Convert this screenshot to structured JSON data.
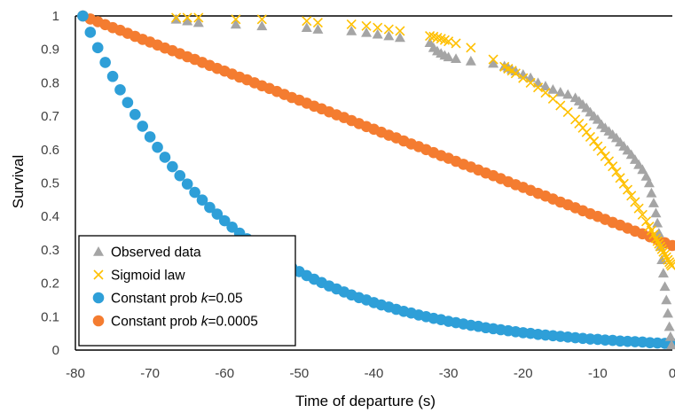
{
  "chart_data": {
    "type": "scatter",
    "xlabel": "Time of departure (s)",
    "ylabel": "Survival",
    "xlim": [
      -80,
      0
    ],
    "ylim": [
      0,
      1
    ],
    "x_ticks": [
      "-80",
      "-70",
      "-60",
      "-50",
      "-40",
      "-30",
      "-20",
      "-10",
      "0"
    ],
    "y_ticks": [
      "0",
      "0.1",
      "0.2",
      "0.3",
      "0.4",
      "0.5",
      "0.6",
      "0.7",
      "0.8",
      "0.9",
      "1"
    ],
    "grid": false,
    "legend_position": "bottom-left",
    "series": [
      {
        "name": "Observed data",
        "marker": "triangle",
        "color": "#a5a5a5",
        "points": [
          [
            -66.5,
            0.99
          ],
          [
            -65,
            0.985
          ],
          [
            -63.5,
            0.98
          ],
          [
            -58.5,
            0.975
          ],
          [
            -55,
            0.97
          ],
          [
            -49,
            0.965
          ],
          [
            -47.5,
            0.96
          ],
          [
            -43,
            0.955
          ],
          [
            -41,
            0.95
          ],
          [
            -39.5,
            0.945
          ],
          [
            -38,
            0.94
          ],
          [
            -36.5,
            0.935
          ],
          [
            -32.5,
            0.92
          ],
          [
            -32,
            0.905
          ],
          [
            -31.5,
            0.895
          ],
          [
            -31,
            0.888
          ],
          [
            -30.5,
            0.882
          ],
          [
            -30,
            0.877
          ],
          [
            -29,
            0.872
          ],
          [
            -27,
            0.865
          ],
          [
            -24,
            0.858
          ],
          [
            -22.5,
            0.85
          ],
          [
            -22,
            0.845
          ],
          [
            -21.5,
            0.84
          ],
          [
            -21,
            0.835
          ],
          [
            -20,
            0.825
          ],
          [
            -19,
            0.815
          ],
          [
            -18,
            0.8
          ],
          [
            -17,
            0.79
          ],
          [
            -16,
            0.78
          ],
          [
            -15,
            0.772
          ],
          [
            -14,
            0.765
          ],
          [
            -13,
            0.755
          ],
          [
            -12.5,
            0.745
          ],
          [
            -12,
            0.735
          ],
          [
            -11.5,
            0.725
          ],
          [
            -11,
            0.712
          ],
          [
            -10.5,
            0.7
          ],
          [
            -10,
            0.69
          ],
          [
            -9.5,
            0.675
          ],
          [
            -9,
            0.665
          ],
          [
            -8.5,
            0.655
          ],
          [
            -8,
            0.645
          ],
          [
            -7.5,
            0.635
          ],
          [
            -7,
            0.622
          ],
          [
            -6.5,
            0.61
          ],
          [
            -6,
            0.598
          ],
          [
            -5.5,
            0.585
          ],
          [
            -5,
            0.57
          ],
          [
            -4.5,
            0.555
          ],
          [
            -4,
            0.54
          ],
          [
            -3.5,
            0.52
          ],
          [
            -3.1,
            0.5
          ],
          [
            -2.8,
            0.47
          ],
          [
            -2.5,
            0.44
          ],
          [
            -2.2,
            0.41
          ],
          [
            -2,
            0.38
          ],
          [
            -1.8,
            0.35
          ],
          [
            -1.6,
            0.31
          ],
          [
            -1.4,
            0.27
          ],
          [
            -1.2,
            0.23
          ],
          [
            -1.0,
            0.19
          ],
          [
            -0.8,
            0.15
          ],
          [
            -0.6,
            0.11
          ],
          [
            -0.4,
            0.07
          ],
          [
            -0.25,
            0.04
          ],
          [
            -0.1,
            0.015
          ]
        ]
      },
      {
        "name": "Sigmoid law",
        "marker": "x",
        "color": "#ffc000",
        "points": [
          [
            -66.5,
            0.995
          ],
          [
            -65,
            0.995
          ],
          [
            -63.5,
            0.995
          ],
          [
            -58.5,
            0.99
          ],
          [
            -55,
            0.99
          ],
          [
            -49,
            0.985
          ],
          [
            -47.5,
            0.98
          ],
          [
            -43,
            0.975
          ],
          [
            -41,
            0.97
          ],
          [
            -39.5,
            0.965
          ],
          [
            -38,
            0.96
          ],
          [
            -36.5,
            0.955
          ],
          [
            -32.5,
            0.94
          ],
          [
            -32,
            0.938
          ],
          [
            -31.5,
            0.935
          ],
          [
            -31,
            0.932
          ],
          [
            -30.5,
            0.928
          ],
          [
            -30,
            0.924
          ],
          [
            -29,
            0.918
          ],
          [
            -27,
            0.905
          ],
          [
            -24,
            0.87
          ],
          [
            -22.5,
            0.848
          ],
          [
            -22,
            0.842
          ],
          [
            -21.5,
            0.836
          ],
          [
            -21,
            0.828
          ],
          [
            -20,
            0.814
          ],
          [
            -19,
            0.8
          ],
          [
            -18,
            0.786
          ],
          [
            -17,
            0.77
          ],
          [
            -16,
            0.752
          ],
          [
            -15,
            0.732
          ],
          [
            -14,
            0.712
          ],
          [
            -13,
            0.69
          ],
          [
            -12.5,
            0.678
          ],
          [
            -12,
            0.665
          ],
          [
            -11.5,
            0.652
          ],
          [
            -11,
            0.638
          ],
          [
            -10.5,
            0.625
          ],
          [
            -10,
            0.61
          ],
          [
            -9.5,
            0.596
          ],
          [
            -9,
            0.58
          ],
          [
            -8.5,
            0.565
          ],
          [
            -8,
            0.55
          ],
          [
            -7.5,
            0.533
          ],
          [
            -7,
            0.515
          ],
          [
            -6.5,
            0.498
          ],
          [
            -6,
            0.48
          ],
          [
            -5.5,
            0.462
          ],
          [
            -5,
            0.443
          ],
          [
            -4.5,
            0.424
          ],
          [
            -4,
            0.405
          ],
          [
            -3.5,
            0.385
          ],
          [
            -3.1,
            0.37
          ],
          [
            -2.8,
            0.358
          ],
          [
            -2.5,
            0.346
          ],
          [
            -2.2,
            0.334
          ],
          [
            -2,
            0.326
          ],
          [
            -1.8,
            0.318
          ],
          [
            -1.6,
            0.31
          ],
          [
            -1.4,
            0.302
          ],
          [
            -1.2,
            0.294
          ],
          [
            -1.0,
            0.286
          ],
          [
            -0.8,
            0.278
          ],
          [
            -0.6,
            0.27
          ],
          [
            -0.4,
            0.263
          ],
          [
            -0.25,
            0.257
          ],
          [
            -0.1,
            0.252
          ]
        ]
      },
      {
        "name": "Constant prob k=0.05",
        "name_parts": [
          "Constant prob ",
          "k",
          "=0.05"
        ],
        "marker": "circle",
        "color": "#2e9fd8",
        "function": "exp(-0.05*(t+79))",
        "x": [
          -79,
          -78,
          -77,
          -76,
          -75,
          -74,
          -73,
          -72,
          -71,
          -70,
          -69,
          -68,
          -67,
          -66,
          -65,
          -64,
          -63,
          -62,
          -61,
          -60,
          -59,
          -58,
          -57,
          -56,
          -55,
          -54,
          -53,
          -52,
          -51,
          -50,
          -49,
          -48,
          -47,
          -46,
          -45,
          -44,
          -43,
          -42,
          -41,
          -40,
          -39,
          -38,
          -37,
          -36,
          -35,
          -34,
          -33,
          -32,
          -31,
          -30,
          -29,
          -28,
          -27,
          -26,
          -25,
          -24,
          -23,
          -22,
          -21,
          -20,
          -19,
          -18,
          -17,
          -16,
          -15,
          -14,
          -13,
          -12,
          -11,
          -10,
          -9,
          -8,
          -7,
          -6,
          -5,
          -4,
          -3,
          -2,
          -1,
          0
        ],
        "y": [
          1.0,
          0.951,
          0.905,
          0.861,
          0.819,
          0.779,
          0.741,
          0.705,
          0.67,
          0.638,
          0.607,
          0.577,
          0.549,
          0.522,
          0.497,
          0.472,
          0.449,
          0.427,
          0.407,
          0.387,
          0.368,
          0.35,
          0.333,
          0.317,
          0.301,
          0.287,
          0.273,
          0.259,
          0.247,
          0.235,
          0.223,
          0.212,
          0.202,
          0.192,
          0.183,
          0.174,
          0.165,
          0.157,
          0.15,
          0.142,
          0.135,
          0.129,
          0.122,
          0.116,
          0.111,
          0.105,
          0.1,
          0.095,
          0.091,
          0.086,
          0.082,
          0.078,
          0.074,
          0.071,
          0.067,
          0.064,
          0.061,
          0.058,
          0.055,
          0.052,
          0.05,
          0.047,
          0.045,
          0.043,
          0.041,
          0.039,
          0.037,
          0.035,
          0.033,
          0.032,
          0.03,
          0.029,
          0.027,
          0.026,
          0.025,
          0.024,
          0.022,
          0.021,
          0.02,
          0.019
        ]
      },
      {
        "name": "Constant prob k=0.0005",
        "name_parts": [
          "Constant prob ",
          "k",
          "=0.0005"
        ],
        "marker": "circle",
        "color": "#f47c30",
        "function": "1 - 0.0087*(t+79)",
        "x": [
          -79,
          -78,
          -77,
          -76,
          -75,
          -74,
          -73,
          -72,
          -71,
          -70,
          -69,
          -68,
          -67,
          -66,
          -65,
          -64,
          -63,
          -62,
          -61,
          -60,
          -59,
          -58,
          -57,
          -56,
          -55,
          -54,
          -53,
          -52,
          -51,
          -50,
          -49,
          -48,
          -47,
          -46,
          -45,
          -44,
          -43,
          -42,
          -41,
          -40,
          -39,
          -38,
          -37,
          -36,
          -35,
          -34,
          -33,
          -32,
          -31,
          -30,
          -29,
          -28,
          -27,
          -26,
          -25,
          -24,
          -23,
          -22,
          -21,
          -20,
          -19,
          -18,
          -17,
          -16,
          -15,
          -14,
          -13,
          -12,
          -11,
          -10,
          -9,
          -8,
          -7,
          -6,
          -5,
          -4,
          -3,
          -2,
          -1,
          0
        ],
        "y": [
          1.0,
          0.991,
          0.983,
          0.974,
          0.965,
          0.957,
          0.948,
          0.939,
          0.93,
          0.922,
          0.913,
          0.904,
          0.896,
          0.887,
          0.878,
          0.87,
          0.861,
          0.852,
          0.843,
          0.835,
          0.826,
          0.817,
          0.809,
          0.8,
          0.791,
          0.783,
          0.774,
          0.765,
          0.756,
          0.748,
          0.739,
          0.73,
          0.722,
          0.713,
          0.704,
          0.696,
          0.687,
          0.678,
          0.669,
          0.661,
          0.652,
          0.643,
          0.635,
          0.626,
          0.617,
          0.609,
          0.6,
          0.591,
          0.582,
          0.574,
          0.565,
          0.556,
          0.548,
          0.539,
          0.53,
          0.522,
          0.513,
          0.504,
          0.495,
          0.487,
          0.478,
          0.469,
          0.461,
          0.452,
          0.443,
          0.435,
          0.426,
          0.417,
          0.408,
          0.4,
          0.391,
          0.382,
          0.374,
          0.365,
          0.356,
          0.348,
          0.339,
          0.33,
          0.321,
          0.313
        ]
      }
    ]
  }
}
